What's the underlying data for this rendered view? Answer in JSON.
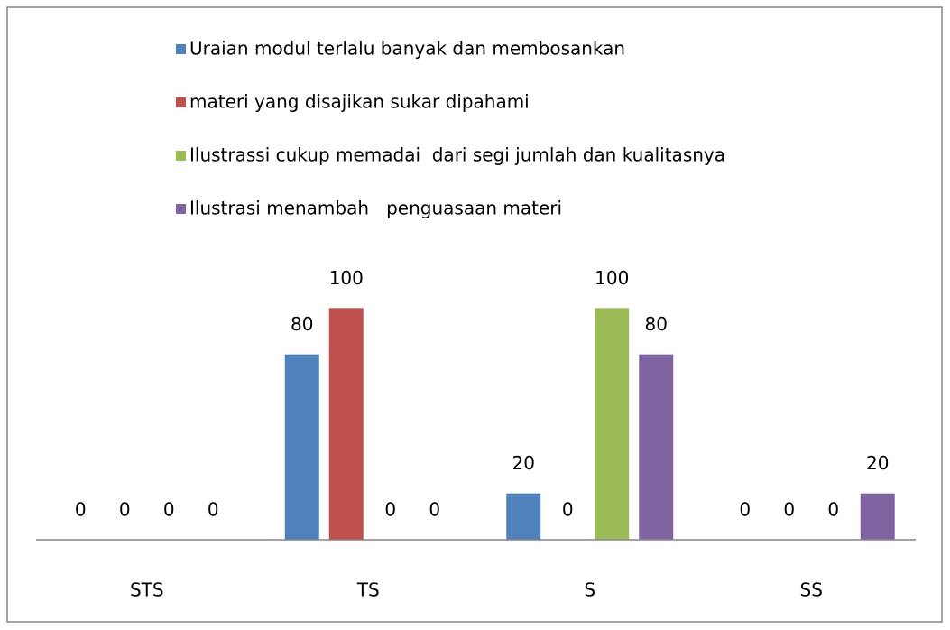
{
  "chart_data": {
    "type": "bar",
    "categories": [
      "STS",
      "TS",
      "S",
      "SS"
    ],
    "series": [
      {
        "name": "Uraian modul terlalu banyak dan membosankan",
        "color": "#4f81bd",
        "values": [
          0,
          80,
          20,
          0
        ]
      },
      {
        "name": "materi yang disajikan sukar dipahami",
        "color": "#c0504d",
        "values": [
          0,
          100,
          0,
          0
        ]
      },
      {
        "name": "Ilustrassi cukup memadai  dari segi jumlah dan kualitasnya",
        "color": "#9bbb59",
        "values": [
          0,
          0,
          100,
          0
        ]
      },
      {
        "name": "Ilustrasi menambah   penguasaan materi",
        "color": "#8064a2",
        "values": [
          0,
          0,
          80,
          20
        ]
      }
    ],
    "ylim": [
      0,
      120
    ],
    "legend": "top"
  }
}
